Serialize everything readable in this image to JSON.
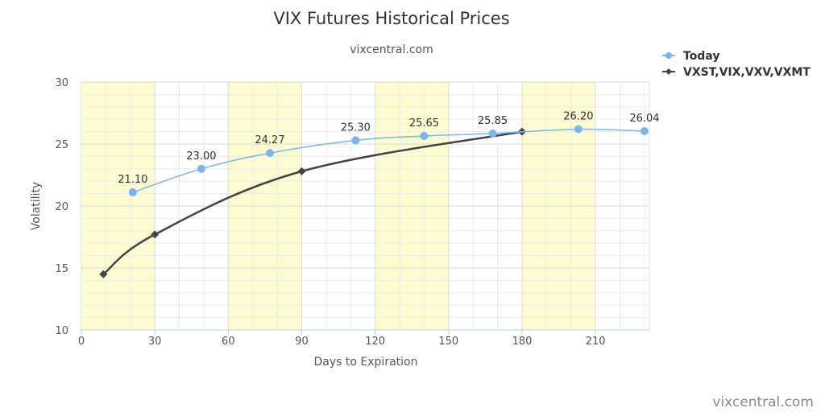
{
  "chart_data": {
    "type": "line",
    "title": "VIX Futures Historical Prices",
    "subtitle": "vixcentral.com",
    "xlabel": "Days to Expiration",
    "ylabel": "Volatility",
    "xlim": [
      0,
      232
    ],
    "ylim": [
      10,
      30
    ],
    "x_ticks": [
      0,
      30,
      60,
      90,
      120,
      150,
      180,
      210
    ],
    "y_ticks": [
      10,
      15,
      20,
      25,
      30
    ],
    "grid": true,
    "shaded_bands": [
      [
        0,
        30
      ],
      [
        60,
        90
      ],
      [
        120,
        150
      ],
      [
        180,
        210
      ]
    ],
    "legend_position": "top-right",
    "series": [
      {
        "name": "Today",
        "color": "#7cb5ec",
        "marker": "circle",
        "points": [
          {
            "x": 21,
            "y": 21.1
          },
          {
            "x": 49,
            "y": 23.0
          },
          {
            "x": 77,
            "y": 24.27
          },
          {
            "x": 112,
            "y": 25.3
          },
          {
            "x": 140,
            "y": 25.65
          },
          {
            "x": 168,
            "y": 25.85
          },
          {
            "x": 203,
            "y": 26.2
          },
          {
            "x": 230,
            "y": 26.04
          }
        ],
        "labels": [
          "21.10",
          "23.00",
          "24.27",
          "25.30",
          "25.65",
          "25.85",
          "26.20",
          "26.04"
        ]
      },
      {
        "name": "VXST,VIX,VXV,VXMT",
        "color": "#434348",
        "marker": "diamond",
        "points": [
          {
            "x": 9,
            "y": 14.5
          },
          {
            "x": 30,
            "y": 17.7
          },
          {
            "x": 90,
            "y": 22.8
          },
          {
            "x": 180,
            "y": 26.0
          }
        ]
      }
    ]
  },
  "credit": "vixcentral.com"
}
